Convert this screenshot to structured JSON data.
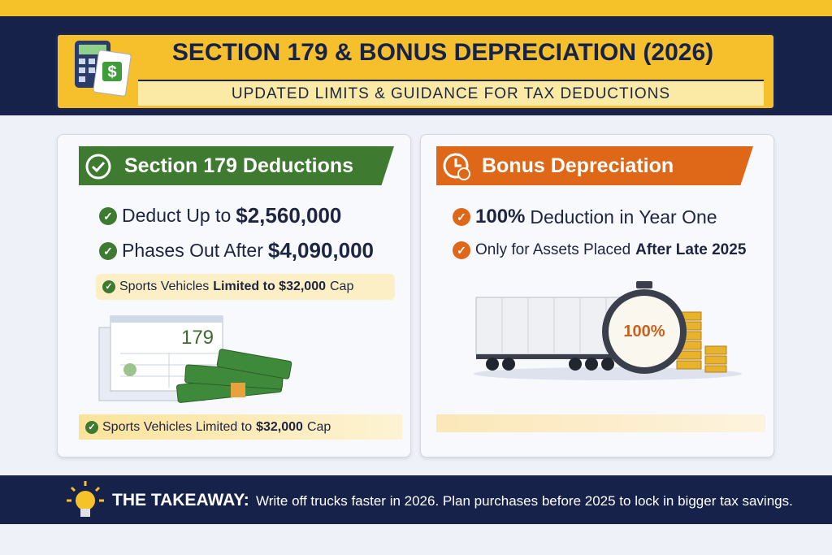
{
  "header": {
    "title": "SECTION 179 & BONUS DEPRECIATION (2026)",
    "subtitle": "UPDATED LIMITS & GUIDANCE FOR TAX DEDUCTIONS"
  },
  "left_card": {
    "title": "Section 179 Deductions",
    "items": [
      {
        "text": "Deduct Up to",
        "emphasis": "$2,560,000"
      },
      {
        "text": "Phases Out After",
        "emphasis": "$4,090,000"
      }
    ],
    "note": {
      "text": "Sports Vehicles",
      "emphasis": "Limited to $32,000",
      "suffix": "Cap"
    },
    "illustration_label": "179",
    "footer_note": {
      "text": "Sports Vehicles Limited to",
      "emphasis": "$32,000",
      "suffix": "Cap"
    }
  },
  "right_card": {
    "title": "Bonus Depreciation",
    "items": [
      {
        "emphasis": "100%",
        "text": "Deduction in Year One"
      },
      {
        "text": "Only for Assets Placed",
        "emphasis": "After Late 2025"
      }
    ],
    "illustration_label": "100%"
  },
  "takeaway": {
    "label": "THE TAKEAWAY:",
    "text": "Write off trucks faster in 2026. Plan purchases before 2025 to lock in bigger tax savings."
  }
}
